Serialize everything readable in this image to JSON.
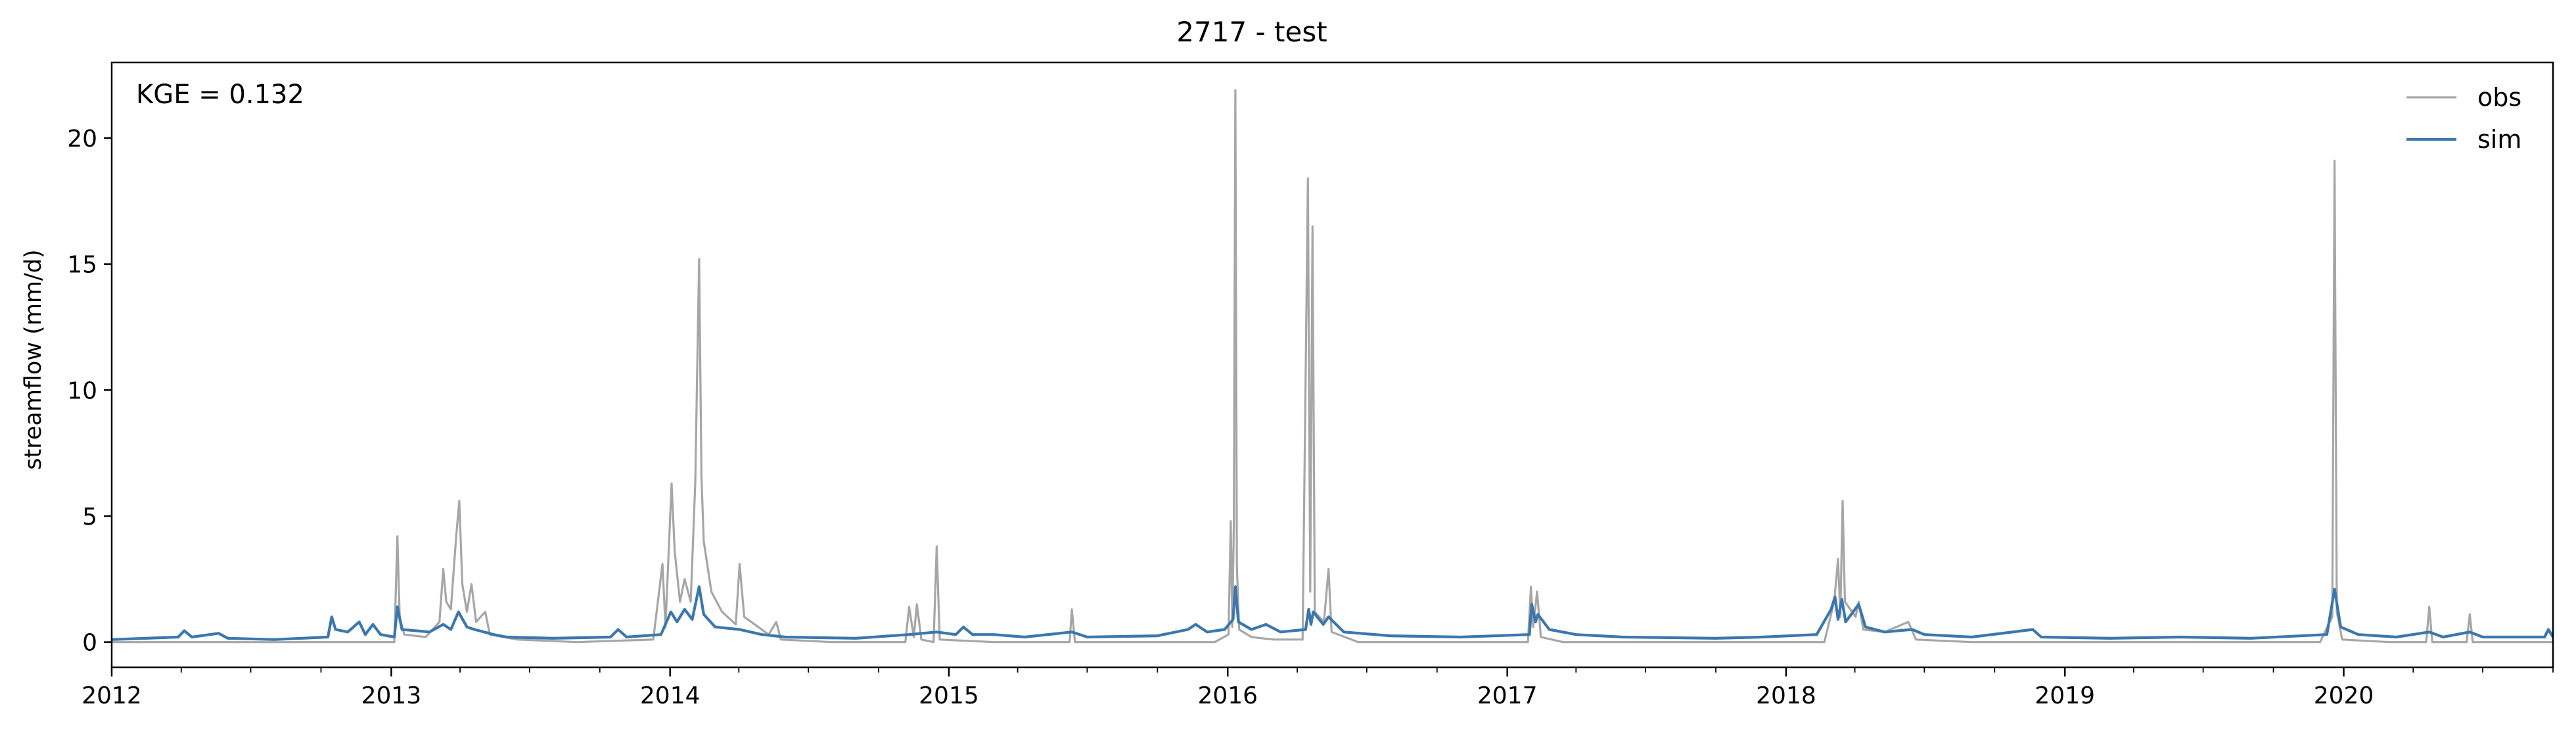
{
  "chart_data": {
    "type": "line",
    "title": "2717 - test",
    "xlabel": "",
    "ylabel": "streamflow (mm/d)",
    "annotation": "KGE = 0.132",
    "x_axis": {
      "type": "date",
      "range": [
        "2012-01-01",
        "2020-10-01"
      ],
      "ticks": [
        "2012",
        "2013",
        "2014",
        "2015",
        "2016",
        "2017",
        "2018",
        "2019",
        "2020"
      ]
    },
    "y_axis": {
      "range": [
        -1,
        23
      ],
      "ticks": [
        0,
        5,
        10,
        15,
        20
      ]
    },
    "grid": false,
    "legend": {
      "placement": "top-right"
    },
    "series": [
      {
        "name": "obs",
        "color": "#a6a6a6",
        "points": [
          [
            "2012-01-01",
            0.0
          ],
          [
            "2012-03-01",
            0.0
          ],
          [
            "2012-06-01",
            0.0
          ],
          [
            "2012-09-01",
            0.0
          ],
          [
            "2012-12-01",
            0.0
          ],
          [
            "2013-01-05",
            0.0
          ],
          [
            "2013-01-09",
            4.2
          ],
          [
            "2013-01-12",
            1.0
          ],
          [
            "2013-01-18",
            0.3
          ],
          [
            "2013-02-15",
            0.2
          ],
          [
            "2013-03-05",
            0.8
          ],
          [
            "2013-03-10",
            2.9
          ],
          [
            "2013-03-14",
            1.6
          ],
          [
            "2013-03-20",
            1.3
          ],
          [
            "2013-03-27",
            4.2
          ],
          [
            "2013-03-31",
            5.6
          ],
          [
            "2013-04-04",
            2.3
          ],
          [
            "2013-04-10",
            1.2
          ],
          [
            "2013-04-16",
            2.3
          ],
          [
            "2013-04-22",
            0.8
          ],
          [
            "2013-05-04",
            1.2
          ],
          [
            "2013-05-10",
            0.3
          ],
          [
            "2013-06-15",
            0.1
          ],
          [
            "2013-09-01",
            0.0
          ],
          [
            "2013-12-10",
            0.1
          ],
          [
            "2013-12-22",
            3.1
          ],
          [
            "2013-12-26",
            0.6
          ],
          [
            "2014-01-03",
            6.3
          ],
          [
            "2014-01-07",
            3.6
          ],
          [
            "2014-01-14",
            1.6
          ],
          [
            "2014-01-20",
            2.5
          ],
          [
            "2014-01-28",
            1.6
          ],
          [
            "2014-02-03",
            6.4
          ],
          [
            "2014-02-05",
            10.0
          ],
          [
            "2014-02-08",
            15.2
          ],
          [
            "2014-02-11",
            6.6
          ],
          [
            "2014-02-14",
            4.0
          ],
          [
            "2014-02-24",
            2.0
          ],
          [
            "2014-03-10",
            1.2
          ],
          [
            "2014-03-28",
            0.7
          ],
          [
            "2014-04-02",
            3.1
          ],
          [
            "2014-04-08",
            1.0
          ],
          [
            "2014-05-10",
            0.3
          ],
          [
            "2014-05-20",
            0.8
          ],
          [
            "2014-05-26",
            0.1
          ],
          [
            "2014-08-01",
            0.0
          ],
          [
            "2014-11-05",
            0.0
          ],
          [
            "2014-11-10",
            1.4
          ],
          [
            "2014-11-16",
            0.2
          ],
          [
            "2014-11-20",
            1.5
          ],
          [
            "2014-11-26",
            0.1
          ],
          [
            "2014-12-12",
            0.0
          ],
          [
            "2014-12-16",
            3.8
          ],
          [
            "2014-12-20",
            0.1
          ],
          [
            "2015-03-01",
            0.0
          ],
          [
            "2015-06-08",
            0.0
          ],
          [
            "2015-06-11",
            1.3
          ],
          [
            "2015-06-15",
            0.0
          ],
          [
            "2015-09-01",
            0.0
          ],
          [
            "2015-12-15",
            0.0
          ],
          [
            "2016-01-02",
            0.3
          ],
          [
            "2016-01-05",
            4.8
          ],
          [
            "2016-01-07",
            0.6
          ],
          [
            "2016-01-09",
            4.7
          ],
          [
            "2016-01-11",
            21.9
          ],
          [
            "2016-01-13",
            3.0
          ],
          [
            "2016-01-16",
            0.5
          ],
          [
            "2016-02-01",
            0.2
          ],
          [
            "2016-03-01",
            0.1
          ],
          [
            "2016-04-08",
            0.1
          ],
          [
            "2016-04-15",
            18.4
          ],
          [
            "2016-04-18",
            2.0
          ],
          [
            "2016-04-21",
            16.5
          ],
          [
            "2016-04-24",
            1.2
          ],
          [
            "2016-05-06",
            0.8
          ],
          [
            "2016-05-12",
            2.9
          ],
          [
            "2016-05-16",
            0.4
          ],
          [
            "2016-06-20",
            0.0
          ],
          [
            "2016-09-01",
            0.0
          ],
          [
            "2017-01-28",
            0.0
          ],
          [
            "2017-02-01",
            2.2
          ],
          [
            "2017-02-04",
            0.6
          ],
          [
            "2017-02-09",
            2.0
          ],
          [
            "2017-02-14",
            0.2
          ],
          [
            "2017-03-15",
            0.0
          ],
          [
            "2017-07-01",
            0.0
          ],
          [
            "2017-12-01",
            0.0
          ],
          [
            "2018-02-20",
            0.0
          ],
          [
            "2018-03-05",
            1.6
          ],
          [
            "2018-03-10",
            3.3
          ],
          [
            "2018-03-13",
            1.0
          ],
          [
            "2018-03-16",
            5.6
          ],
          [
            "2018-03-19",
            1.6
          ],
          [
            "2018-04-02",
            1.0
          ],
          [
            "2018-04-06",
            1.6
          ],
          [
            "2018-04-12",
            0.5
          ],
          [
            "2018-05-10",
            0.4
          ],
          [
            "2018-06-10",
            0.8
          ],
          [
            "2018-06-20",
            0.1
          ],
          [
            "2018-09-01",
            0.0
          ],
          [
            "2019-03-01",
            0.0
          ],
          [
            "2019-08-01",
            0.0
          ],
          [
            "2019-12-01",
            0.0
          ],
          [
            "2019-12-17",
            1.0
          ],
          [
            "2019-12-20",
            19.1
          ],
          [
            "2019-12-23",
            1.2
          ],
          [
            "2019-12-30",
            0.1
          ],
          [
            "2020-03-01",
            0.0
          ],
          [
            "2020-04-18",
            0.0
          ],
          [
            "2020-04-22",
            1.4
          ],
          [
            "2020-04-26",
            0.0
          ],
          [
            "2020-06-10",
            0.0
          ],
          [
            "2020-06-14",
            1.1
          ],
          [
            "2020-06-18",
            0.0
          ],
          [
            "2020-08-01",
            0.0
          ],
          [
            "2020-10-01",
            0.0
          ]
        ]
      },
      {
        "name": "sim",
        "color": "#3b77ad",
        "points": [
          [
            "2012-01-01",
            0.1
          ],
          [
            "2012-02-15",
            0.15
          ],
          [
            "2012-03-28",
            0.2
          ],
          [
            "2012-04-05",
            0.45
          ],
          [
            "2012-04-15",
            0.2
          ],
          [
            "2012-05-20",
            0.35
          ],
          [
            "2012-06-01",
            0.15
          ],
          [
            "2012-08-01",
            0.1
          ],
          [
            "2012-10-10",
            0.2
          ],
          [
            "2012-10-15",
            1.0
          ],
          [
            "2012-10-20",
            0.5
          ],
          [
            "2012-11-05",
            0.4
          ],
          [
            "2012-11-20",
            0.8
          ],
          [
            "2012-11-28",
            0.3
          ],
          [
            "2012-12-08",
            0.7
          ],
          [
            "2012-12-18",
            0.3
          ],
          [
            "2013-01-05",
            0.2
          ],
          [
            "2013-01-09",
            1.4
          ],
          [
            "2013-01-15",
            0.5
          ],
          [
            "2013-02-20",
            0.4
          ],
          [
            "2013-03-10",
            0.7
          ],
          [
            "2013-03-20",
            0.5
          ],
          [
            "2013-03-30",
            1.2
          ],
          [
            "2013-04-10",
            0.6
          ],
          [
            "2013-04-20",
            0.5
          ],
          [
            "2013-05-15",
            0.3
          ],
          [
            "2013-06-01",
            0.2
          ],
          [
            "2013-08-01",
            0.15
          ],
          [
            "2013-10-15",
            0.2
          ],
          [
            "2013-10-25",
            0.5
          ],
          [
            "2013-11-05",
            0.2
          ],
          [
            "2013-12-20",
            0.3
          ],
          [
            "2014-01-02",
            1.2
          ],
          [
            "2014-01-10",
            0.8
          ],
          [
            "2014-01-20",
            1.3
          ],
          [
            "2014-01-30",
            0.9
          ],
          [
            "2014-02-08",
            2.2
          ],
          [
            "2014-02-14",
            1.1
          ],
          [
            "2014-03-01",
            0.6
          ],
          [
            "2014-04-02",
            0.5
          ],
          [
            "2014-05-01",
            0.3
          ],
          [
            "2014-06-01",
            0.2
          ],
          [
            "2014-09-01",
            0.15
          ],
          [
            "2014-11-10",
            0.3
          ],
          [
            "2014-12-16",
            0.4
          ],
          [
            "2015-01-10",
            0.3
          ],
          [
            "2015-01-20",
            0.6
          ],
          [
            "2015-02-01",
            0.3
          ],
          [
            "2015-03-01",
            0.3
          ],
          [
            "2015-04-10",
            0.2
          ],
          [
            "2015-06-11",
            0.4
          ],
          [
            "2015-07-01",
            0.2
          ],
          [
            "2015-10-01",
            0.25
          ],
          [
            "2015-11-10",
            0.5
          ],
          [
            "2015-11-20",
            0.7
          ],
          [
            "2015-12-05",
            0.4
          ],
          [
            "2015-12-28",
            0.5
          ],
          [
            "2016-01-08",
            0.9
          ],
          [
            "2016-01-11",
            2.2
          ],
          [
            "2016-01-15",
            0.8
          ],
          [
            "2016-02-01",
            0.5
          ],
          [
            "2016-02-20",
            0.7
          ],
          [
            "2016-03-10",
            0.4
          ],
          [
            "2016-04-12",
            0.5
          ],
          [
            "2016-04-16",
            1.3
          ],
          [
            "2016-04-19",
            0.7
          ],
          [
            "2016-04-22",
            1.2
          ],
          [
            "2016-05-05",
            0.7
          ],
          [
            "2016-05-12",
            1.0
          ],
          [
            "2016-06-01",
            0.4
          ],
          [
            "2016-08-01",
            0.25
          ],
          [
            "2016-11-01",
            0.2
          ],
          [
            "2017-01-30",
            0.3
          ],
          [
            "2017-02-02",
            1.5
          ],
          [
            "2017-02-07",
            0.8
          ],
          [
            "2017-02-10",
            1.1
          ],
          [
            "2017-02-25",
            0.5
          ],
          [
            "2017-04-01",
            0.3
          ],
          [
            "2017-06-01",
            0.2
          ],
          [
            "2017-10-01",
            0.15
          ],
          [
            "2017-12-01",
            0.2
          ],
          [
            "2018-02-10",
            0.3
          ],
          [
            "2018-03-01",
            1.3
          ],
          [
            "2018-03-06",
            1.8
          ],
          [
            "2018-03-10",
            0.9
          ],
          [
            "2018-03-15",
            1.7
          ],
          [
            "2018-03-20",
            0.8
          ],
          [
            "2018-04-06",
            1.5
          ],
          [
            "2018-04-15",
            0.6
          ],
          [
            "2018-05-10",
            0.4
          ],
          [
            "2018-06-15",
            0.5
          ],
          [
            "2018-07-01",
            0.3
          ],
          [
            "2018-09-01",
            0.2
          ],
          [
            "2018-11-20",
            0.5
          ],
          [
            "2018-12-01",
            0.2
          ],
          [
            "2019-03-01",
            0.15
          ],
          [
            "2019-06-01",
            0.2
          ],
          [
            "2019-09-01",
            0.15
          ],
          [
            "2019-12-10",
            0.3
          ],
          [
            "2019-12-20",
            2.1
          ],
          [
            "2019-12-28",
            0.6
          ],
          [
            "2020-01-20",
            0.3
          ],
          [
            "2020-03-10",
            0.2
          ],
          [
            "2020-04-22",
            0.4
          ],
          [
            "2020-05-10",
            0.2
          ],
          [
            "2020-06-14",
            0.4
          ],
          [
            "2020-07-01",
            0.2
          ],
          [
            "2020-09-20",
            0.2
          ],
          [
            "2020-09-25",
            0.5
          ],
          [
            "2020-10-01",
            0.2
          ]
        ]
      }
    ]
  }
}
